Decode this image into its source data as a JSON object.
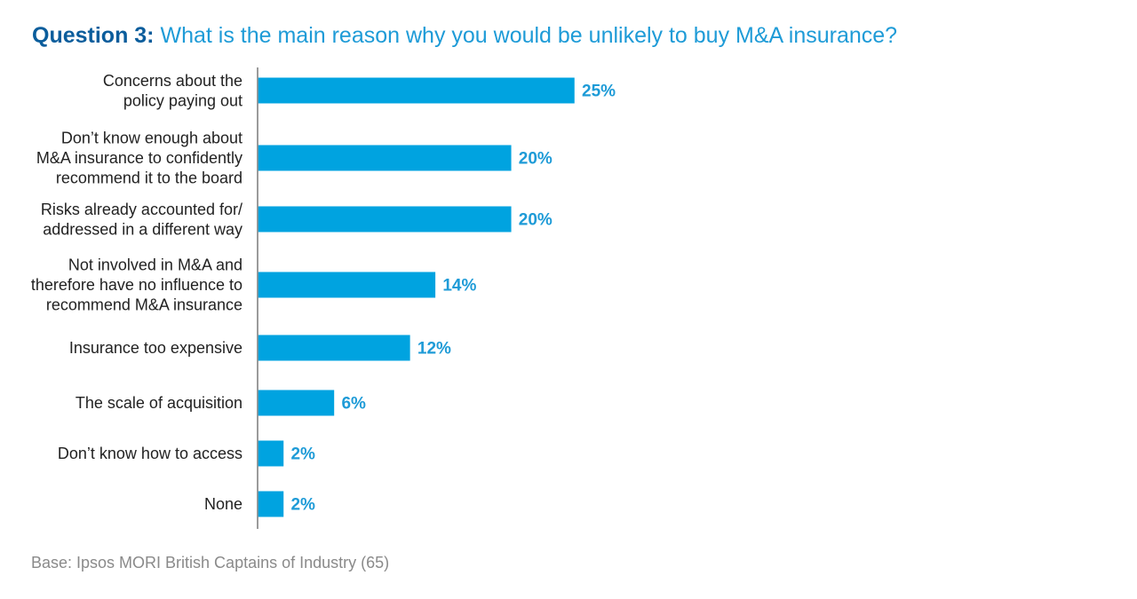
{
  "title": {
    "prefix": "Question 3:",
    "text": "What is the main reason why you would be unlikely to buy M&A insurance?"
  },
  "base_note": "Base: Ipsos MORI British Captains of Industry (65)",
  "colors": {
    "bar": "#00a3e0",
    "label_value": "#1e9bd7",
    "title_prefix": "#0b5d9c",
    "title_text": "#1e9bd7",
    "category_text": "#222222",
    "axis": "#7a7a7a"
  },
  "chart_data": {
    "type": "bar",
    "orientation": "horizontal",
    "categories": [
      [
        "Concerns about the",
        "policy paying out"
      ],
      [
        "Don’t know enough about",
        "M&A insurance to confidently",
        "recommend it to the board"
      ],
      [
        "Risks already accounted for/",
        "addressed in a different way"
      ],
      [
        "Not involved in M&A and",
        "therefore have no influence to",
        "recommend M&A insurance"
      ],
      [
        "Insurance too expensive"
      ],
      [
        "The scale of acquisition"
      ],
      [
        "Don’t know how to access"
      ],
      [
        "None"
      ]
    ],
    "values": [
      25,
      20,
      20,
      14,
      12,
      6,
      2,
      2
    ],
    "value_labels": [
      "25%",
      "20%",
      "20%",
      "14%",
      "12%",
      "6%",
      "2%",
      "2%"
    ],
    "unit": "%",
    "xlim": [
      0,
      25
    ],
    "grid": false,
    "legend": "none"
  }
}
